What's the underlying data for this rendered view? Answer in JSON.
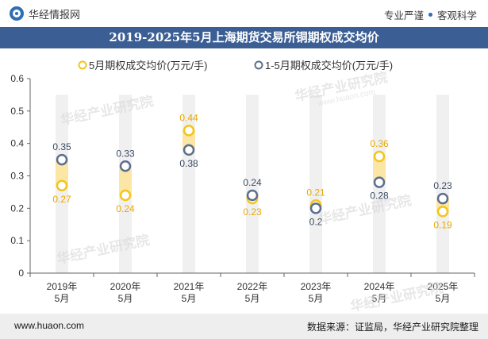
{
  "header": {
    "brand": "华经情报网",
    "slogan_left": "专业严谨",
    "slogan_right": "客观科学"
  },
  "footer": {
    "website": "www.huaon.com",
    "source": "数据来源：证监局，华经产业研究院整理"
  },
  "watermarks": {
    "text": "华经产业研究院",
    "sub": "www.huaon.com"
  },
  "colors": {
    "title_bg": "#3b5f94",
    "series_monthly": "#f5c518",
    "series_cumulative": "#5c6f8f",
    "range_band": "#fbe6a6",
    "column_bg": "#f0f0f0"
  },
  "chart_data": {
    "type": "dumbbell",
    "title": "2019-2025年5月上海期货交易所铜期权成交均价",
    "categories": [
      "2019年\n5月",
      "2020年\n5月",
      "2021年\n5月",
      "2022年\n5月",
      "2023年\n5月",
      "2024年\n5月",
      "2025年\n5月"
    ],
    "series": [
      {
        "name": "5月期权成交均价(万元/手)",
        "values": [
          0.27,
          0.24,
          0.44,
          0.23,
          0.21,
          0.36,
          0.19
        ]
      },
      {
        "name": "1-5月期权成交均价(万元/手)",
        "values": [
          0.35,
          0.33,
          0.38,
          0.24,
          0.2,
          0.28,
          0.23
        ]
      }
    ],
    "ylim": [
      0,
      0.6
    ],
    "yticks": [
      "0",
      "0.1",
      "0.2",
      "0.3",
      "0.4",
      "0.5",
      "0.6"
    ],
    "legend_position": "top-center",
    "grid": false
  }
}
